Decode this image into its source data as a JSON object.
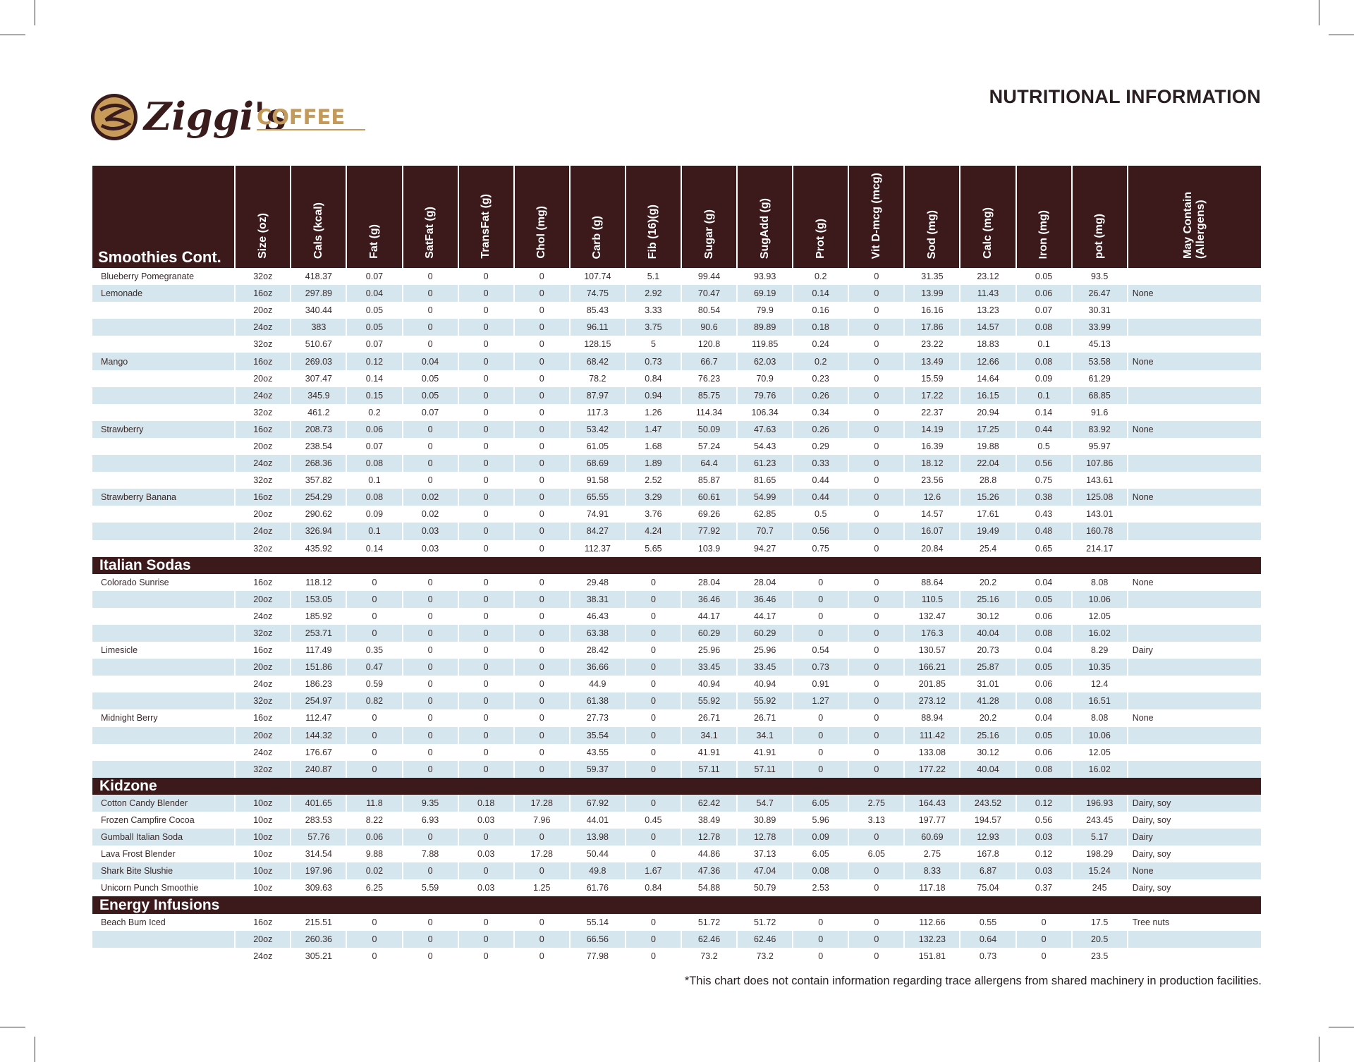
{
  "header": {
    "brand": "Ziggi's",
    "brand_sub": "COFFEE",
    "title": "NUTRITIONAL INFORMATION"
  },
  "table": {
    "columns": [
      "Size (oz)",
      "Cals (kcal)",
      "Fat (g)",
      "SatFat (g)",
      "TransFat (g)",
      "Chol (mg)",
      "Carb (g)",
      "Fib (16)(g)",
      "Sugar (g)",
      "SugAdd (g)",
      "Prot (g)",
      "Vit D-mcg (mcg)",
      "Sod (mg)",
      "Calc (mg)",
      "Iron (mg)",
      "pot (mg)",
      "May Contain (Allergens)"
    ],
    "sections": [
      {
        "title": "Smoothies Cont.",
        "rows": [
          [
            "Blueberry Pomegranate",
            "32oz",
            418.37,
            0.07,
            0,
            0,
            0,
            107.74,
            5.1,
            99.44,
            93.93,
            0.2,
            0,
            31.35,
            23.12,
            0.05,
            93.5,
            null
          ],
          [
            "Lemonade",
            "16oz",
            297.89,
            0.04,
            0,
            0,
            0,
            74.75,
            2.92,
            70.47,
            69.19,
            0.14,
            0,
            13.99,
            11.43,
            0.06,
            26.47,
            "None"
          ],
          [
            null,
            "20oz",
            340.44,
            0.05,
            0,
            0,
            0,
            85.43,
            3.33,
            80.54,
            79.9,
            0.16,
            0,
            16.16,
            13.23,
            0.07,
            30.31,
            null
          ],
          [
            null,
            "24oz",
            383,
            0.05,
            0,
            0,
            0,
            96.11,
            3.75,
            90.6,
            89.89,
            0.18,
            0,
            17.86,
            14.57,
            0.08,
            33.99,
            null
          ],
          [
            null,
            "32oz",
            510.67,
            0.07,
            0,
            0,
            0,
            128.15,
            5,
            120.8,
            119.85,
            0.24,
            0,
            23.22,
            18.83,
            0.1,
            45.13,
            null
          ],
          [
            "Mango",
            "16oz",
            269.03,
            0.12,
            0.04,
            0,
            0,
            68.42,
            0.73,
            66.7,
            62.03,
            0.2,
            0,
            13.49,
            12.66,
            0.08,
            53.58,
            "None"
          ],
          [
            null,
            "20oz",
            307.47,
            0.14,
            0.05,
            0,
            0,
            78.2,
            0.84,
            76.23,
            70.9,
            0.23,
            0,
            15.59,
            14.64,
            0.09,
            61.29,
            null
          ],
          [
            null,
            "24oz",
            345.9,
            0.15,
            0.05,
            0,
            0,
            87.97,
            0.94,
            85.75,
            79.76,
            0.26,
            0,
            17.22,
            16.15,
            0.1,
            68.85,
            null
          ],
          [
            null,
            "32oz",
            461.2,
            0.2,
            0.07,
            0,
            0,
            117.3,
            1.26,
            114.34,
            106.34,
            0.34,
            0,
            22.37,
            20.94,
            0.14,
            91.6,
            null
          ],
          [
            "Strawberry",
            "16oz",
            208.73,
            0.06,
            0,
            0,
            0,
            53.42,
            1.47,
            50.09,
            47.63,
            0.26,
            0,
            14.19,
            17.25,
            0.44,
            83.92,
            "None"
          ],
          [
            null,
            "20oz",
            238.54,
            0.07,
            0,
            0,
            0,
            61.05,
            1.68,
            57.24,
            54.43,
            0.29,
            0,
            16.39,
            19.88,
            0.5,
            95.97,
            null
          ],
          [
            null,
            "24oz",
            268.36,
            0.08,
            0,
            0,
            0,
            68.69,
            1.89,
            64.4,
            61.23,
            0.33,
            0,
            18.12,
            22.04,
            0.56,
            107.86,
            null
          ],
          [
            null,
            "32oz",
            357.82,
            0.1,
            0,
            0,
            0,
            91.58,
            2.52,
            85.87,
            81.65,
            0.44,
            0,
            23.56,
            28.8,
            0.75,
            143.61,
            null
          ],
          [
            "Strawberry Banana",
            "16oz",
            254.29,
            0.08,
            0.02,
            0,
            0,
            65.55,
            3.29,
            60.61,
            54.99,
            0.44,
            0,
            12.6,
            15.26,
            0.38,
            125.08,
            "None"
          ],
          [
            null,
            "20oz",
            290.62,
            0.09,
            0.02,
            0,
            0,
            74.91,
            3.76,
            69.26,
            62.85,
            0.5,
            0,
            14.57,
            17.61,
            0.43,
            143.01,
            null
          ],
          [
            null,
            "24oz",
            326.94,
            0.1,
            0.03,
            0,
            0,
            84.27,
            4.24,
            77.92,
            70.7,
            0.56,
            0,
            16.07,
            19.49,
            0.48,
            160.78,
            null
          ],
          [
            null,
            "32oz",
            435.92,
            0.14,
            0.03,
            0,
            0,
            112.37,
            5.65,
            103.9,
            94.27,
            0.75,
            0,
            20.84,
            25.4,
            0.65,
            214.17,
            null
          ]
        ]
      },
      {
        "title": "Italian Sodas",
        "rows": [
          [
            "Colorado Sunrise",
            "16oz",
            118.12,
            0,
            0,
            0,
            0,
            29.48,
            0,
            28.04,
            28.04,
            0,
            0,
            88.64,
            20.2,
            0.04,
            8.08,
            "None"
          ],
          [
            null,
            "20oz",
            153.05,
            0,
            0,
            0,
            0,
            38.31,
            0,
            36.46,
            36.46,
            0,
            0,
            110.5,
            25.16,
            0.05,
            10.06,
            null
          ],
          [
            null,
            "24oz",
            185.92,
            0,
            0,
            0,
            0,
            46.43,
            0,
            44.17,
            44.17,
            0,
            0,
            132.47,
            30.12,
            0.06,
            12.05,
            null
          ],
          [
            null,
            "32oz",
            253.71,
            0,
            0,
            0,
            0,
            63.38,
            0,
            60.29,
            60.29,
            0,
            0,
            176.3,
            40.04,
            0.08,
            16.02,
            null
          ],
          [
            "Limesicle",
            "16oz",
            117.49,
            0.35,
            0,
            0,
            0,
            28.42,
            0,
            25.96,
            25.96,
            0.54,
            0,
            130.57,
            20.73,
            0.04,
            8.29,
            "Dairy"
          ],
          [
            null,
            "20oz",
            151.86,
            0.47,
            0,
            0,
            0,
            36.66,
            0,
            33.45,
            33.45,
            0.73,
            0,
            166.21,
            25.87,
            0.05,
            10.35,
            null
          ],
          [
            null,
            "24oz",
            186.23,
            0.59,
            0,
            0,
            0,
            44.9,
            0,
            40.94,
            40.94,
            0.91,
            0,
            201.85,
            31.01,
            0.06,
            12.4,
            null
          ],
          [
            null,
            "32oz",
            254.97,
            0.82,
            0,
            0,
            0,
            61.38,
            0,
            55.92,
            55.92,
            1.27,
            0,
            273.12,
            41.28,
            0.08,
            16.51,
            null
          ],
          [
            "Midnight Berry",
            "16oz",
            112.47,
            0,
            0,
            0,
            0,
            27.73,
            0,
            26.71,
            26.71,
            0,
            0,
            88.94,
            20.2,
            0.04,
            8.08,
            "None"
          ],
          [
            null,
            "20oz",
            144.32,
            0,
            0,
            0,
            0,
            35.54,
            0,
            34.1,
            34.1,
            0,
            0,
            111.42,
            25.16,
            0.05,
            10.06,
            null
          ],
          [
            null,
            "24oz",
            176.67,
            0,
            0,
            0,
            0,
            43.55,
            0,
            41.91,
            41.91,
            0,
            0,
            133.08,
            30.12,
            0.06,
            12.05,
            null
          ],
          [
            null,
            "32oz",
            240.87,
            0,
            0,
            0,
            0,
            59.37,
            0,
            57.11,
            57.11,
            0,
            0,
            177.22,
            40.04,
            0.08,
            16.02,
            null
          ]
        ]
      },
      {
        "title": "Kidzone",
        "rows": [
          [
            "Cotton Candy Blender",
            "10oz",
            401.65,
            11.8,
            9.35,
            0.18,
            17.28,
            67.92,
            0,
            62.42,
            54.7,
            6.05,
            2.75,
            164.43,
            243.52,
            0.12,
            196.93,
            "Dairy, soy"
          ],
          [
            "Frozen Campfire Cocoa",
            "10oz",
            283.53,
            8.22,
            6.93,
            0.03,
            7.96,
            44.01,
            0.45,
            38.49,
            30.89,
            5.96,
            3.13,
            197.77,
            194.57,
            0.56,
            243.45,
            "Dairy, soy"
          ],
          [
            "Gumball Italian Soda",
            "10oz",
            57.76,
            0.06,
            0,
            0,
            0,
            13.98,
            0,
            12.78,
            12.78,
            0.09,
            0,
            60.69,
            12.93,
            0.03,
            5.17,
            "Dairy"
          ],
          [
            "Lava Frost Blender",
            "10oz",
            314.54,
            9.88,
            7.88,
            0.03,
            17.28,
            50.44,
            0,
            44.86,
            37.13,
            6.05,
            6.05,
            2.75,
            167.8,
            0.12,
            198.29,
            "Dairy, soy"
          ],
          [
            "Shark Bite Slushie",
            "10oz",
            197.96,
            0.02,
            0,
            0,
            0,
            49.8,
            1.67,
            47.36,
            47.04,
            0.08,
            0,
            8.33,
            6.87,
            0.03,
            15.24,
            "None"
          ],
          [
            "Unicorn Punch Smoothie",
            "10oz",
            309.63,
            6.25,
            5.59,
            0.03,
            1.25,
            61.76,
            0.84,
            54.88,
            50.79,
            2.53,
            0,
            117.18,
            75.04,
            0.37,
            245,
            "Dairy, soy"
          ]
        ]
      },
      {
        "title": "Energy Infusions",
        "rows": [
          [
            "Beach Bum Iced",
            "16oz",
            215.51,
            0,
            0,
            0,
            0,
            55.14,
            0,
            51.72,
            51.72,
            0,
            0,
            112.66,
            0.55,
            0,
            17.5,
            "Tree nuts"
          ],
          [
            null,
            "20oz",
            260.36,
            0,
            0,
            0,
            0,
            66.56,
            0,
            62.46,
            62.46,
            0,
            0,
            132.23,
            0.64,
            0,
            20.5,
            null
          ],
          [
            null,
            "24oz",
            305.21,
            0,
            0,
            0,
            0,
            77.98,
            0,
            73.2,
            73.2,
            0,
            0,
            151.81,
            0.73,
            0,
            23.5,
            null
          ]
        ]
      }
    ]
  },
  "footnote": "*This chart does not contain information regarding trace allergens from shared machinery in production facilities."
}
